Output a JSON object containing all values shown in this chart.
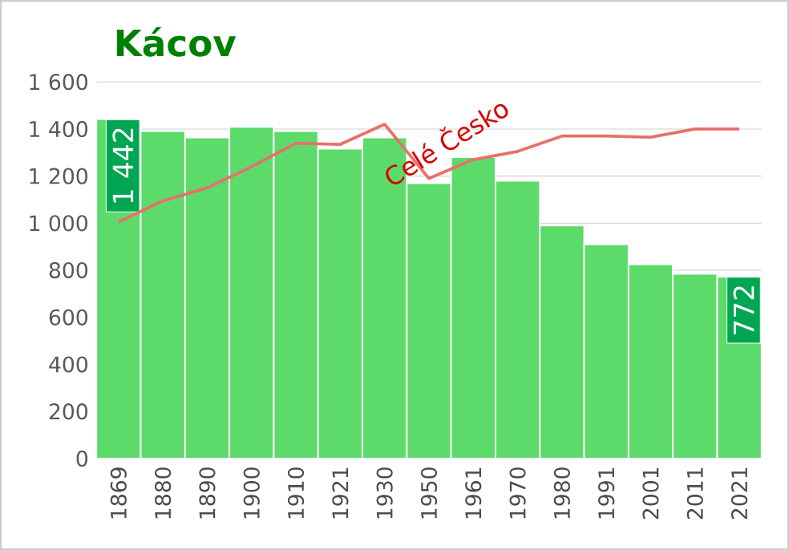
{
  "chart_data": {
    "type": "bar",
    "title": "Kácov",
    "categories": [
      "1869",
      "1880",
      "1890",
      "1900",
      "1910",
      "1921",
      "1930",
      "1950",
      "1961",
      "1970",
      "1980",
      "1991",
      "2001",
      "2011",
      "2021"
    ],
    "series": [
      {
        "color": "#5cdb6a",
        "values": [
          1442,
          1391,
          1364,
          1409,
          1391,
          1316,
          1364,
          1170,
          1280,
          1180,
          990,
          910,
          825,
          785,
          772
        ],
        "value_labels": [
          "1 442",
          null,
          null,
          null,
          null,
          null,
          null,
          null,
          null,
          null,
          null,
          null,
          null,
          null,
          "772"
        ]
      },
      {
        "type": "line",
        "name": "Celé Česko",
        "color": "#e8706a",
        "values": [
          1005,
          1095,
          1150,
          1240,
          1340,
          1335,
          1420,
          1190,
          1270,
          1305,
          1370,
          1370,
          1365,
          1400,
          1400
        ]
      }
    ],
    "ylim": [
      0,
      1600
    ],
    "yticks": [
      0,
      200,
      400,
      600,
      800,
      {
        "value": 1000,
        "label": "1 000"
      },
      {
        "value": 1200,
        "label": "1 200"
      },
      {
        "value": 1400,
        "label": "1 400"
      },
      {
        "value": 1600,
        "label": "1 600"
      }
    ],
    "grid": "y"
  }
}
